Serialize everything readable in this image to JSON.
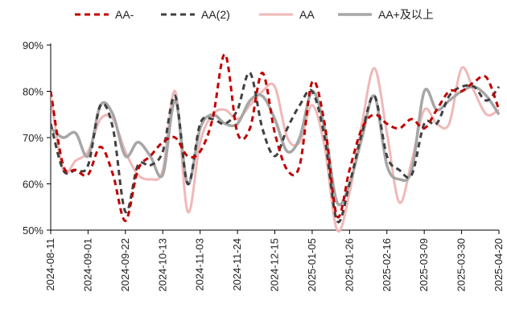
{
  "chart_data": {
    "type": "line",
    "title": "",
    "xlabel": "",
    "ylabel": "",
    "ylim": [
      50,
      90
    ],
    "yticks": [
      "50%",
      "60%",
      "70%",
      "80%",
      "90%"
    ],
    "xticks": [
      "2024-08-11",
      "2024-09-01",
      "2024-09-22",
      "2024-10-13",
      "2024-11-03",
      "2024-11-24",
      "2024-12-15",
      "2025-01-05",
      "2025-01-26",
      "2025-02-16",
      "2025-03-09",
      "2025-03-30",
      "2025-04-20"
    ],
    "grid": false,
    "legend_position": "top",
    "x": [
      "2024-08-11",
      "2024-08-18",
      "2024-08-25",
      "2024-09-01",
      "2024-09-08",
      "2024-09-15",
      "2024-09-22",
      "2024-09-29",
      "2024-10-06",
      "2024-10-13",
      "2024-10-20",
      "2024-10-27",
      "2024-11-03",
      "2024-11-10",
      "2024-11-17",
      "2024-11-24",
      "2024-12-01",
      "2024-12-08",
      "2024-12-15",
      "2024-12-22",
      "2024-12-29",
      "2025-01-05",
      "2025-01-12",
      "2025-01-19",
      "2025-01-26",
      "2025-02-02",
      "2025-02-09",
      "2025-02-16",
      "2025-02-23",
      "2025-03-02",
      "2025-03-09",
      "2025-03-16",
      "2025-03-23",
      "2025-03-30",
      "2025-04-06",
      "2025-04-13",
      "2025-04-20"
    ],
    "series": [
      {
        "name": "AA-",
        "color": "#c00000",
        "dash": "dash",
        "width": 3,
        "values": [
          80,
          64,
          63,
          62,
          68,
          62,
          52,
          63,
          66,
          69,
          70,
          66,
          67,
          74,
          88,
          71,
          72,
          84,
          71,
          63,
          64,
          82,
          73,
          53,
          63,
          72,
          75,
          73,
          72,
          74,
          72,
          76,
          80,
          80,
          82,
          83,
          76
        ]
      },
      {
        "name": "AA(2)",
        "color": "#404040",
        "dash": "dash",
        "width": 3,
        "values": [
          73,
          63,
          63,
          64,
          77,
          72,
          54,
          64,
          64,
          67,
          79,
          60,
          73,
          74,
          73,
          76,
          84,
          72,
          66,
          72,
          77,
          80,
          70,
          52,
          60,
          71,
          79,
          66,
          63,
          62,
          73,
          73,
          79,
          81,
          81,
          78,
          81
        ]
      },
      {
        "name": "AA",
        "color": "#f0b8b8",
        "dash": "solid",
        "width": 3,
        "values": [
          79,
          63,
          65,
          67,
          74,
          74,
          67,
          62,
          61,
          63,
          80,
          54,
          69,
          75,
          76,
          74,
          77,
          80,
          81,
          70,
          69,
          77,
          68,
          50,
          58,
          73,
          85,
          71,
          56,
          65,
          76,
          73,
          73,
          85,
          80,
          75,
          76
        ]
      },
      {
        "name": "AA+及以上",
        "color": "#a6a6a6",
        "dash": "solid",
        "width": 3.5,
        "values": [
          72,
          70,
          71,
          66,
          77,
          75,
          66,
          69,
          66,
          62,
          78,
          60,
          72,
          75,
          73,
          73,
          78,
          79,
          74,
          67,
          70,
          80,
          72,
          56,
          60,
          70,
          79,
          64,
          61,
          63,
          80,
          76,
          78,
          80,
          81,
          79,
          75
        ]
      }
    ]
  }
}
